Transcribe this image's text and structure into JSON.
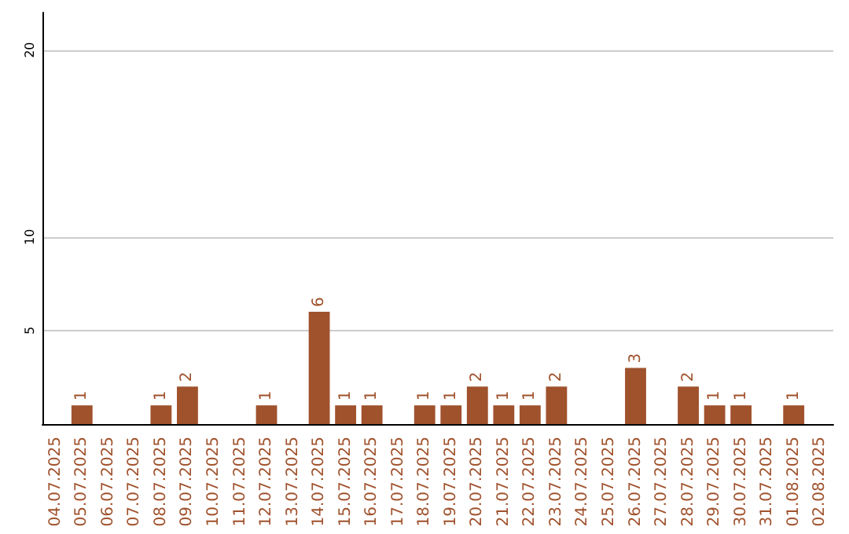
{
  "chart_data": {
    "type": "bar",
    "categories": [
      "04.07.2025",
      "05.07.2025",
      "06.07.2025",
      "07.07.2025",
      "08.07.2025",
      "09.07.2025",
      "10.07.2025",
      "11.07.2025",
      "12.07.2025",
      "13.07.2025",
      "14.07.2025",
      "15.07.2025",
      "16.07.2025",
      "17.07.2025",
      "18.07.2025",
      "19.07.2025",
      "20.07.2025",
      "21.07.2025",
      "22.07.2025",
      "23.07.2025",
      "24.07.2025",
      "25.07.2025",
      "26.07.2025",
      "27.07.2025",
      "28.07.2025",
      "29.07.2025",
      "30.07.2025",
      "31.07.2025",
      "01.08.2025",
      "02.08.2025"
    ],
    "values": [
      null,
      1,
      null,
      null,
      1,
      2,
      null,
      null,
      1,
      null,
      6,
      1,
      1,
      null,
      1,
      1,
      2,
      1,
      1,
      2,
      null,
      null,
      3,
      null,
      2,
      1,
      1,
      null,
      1,
      null
    ],
    "color": "#a0522d",
    "ylim": [
      0,
      22
    ],
    "yticks": [
      5,
      10,
      20
    ],
    "grid": "y",
    "data_labels": true
  }
}
